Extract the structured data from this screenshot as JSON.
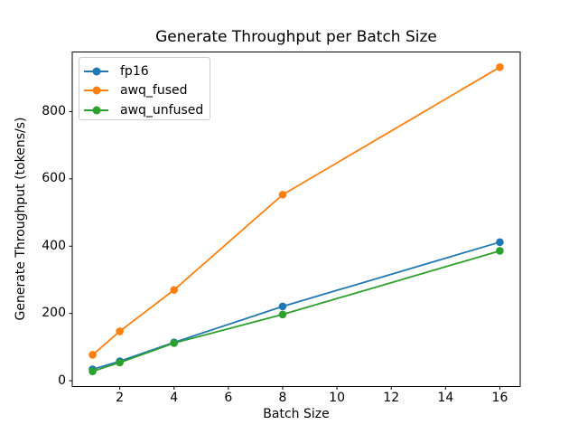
{
  "chart_data": {
    "type": "line",
    "title": "Generate Throughput per Batch Size",
    "xlabel": "Batch Size",
    "ylabel": "Generate Throughput (tokens/s)",
    "x": [
      1,
      2,
      4,
      8,
      16
    ],
    "series": [
      {
        "name": "fp16",
        "color": "#1f77b4",
        "values": [
          34,
          58,
          114,
          221,
          412
        ]
      },
      {
        "name": "awq_fused",
        "color": "#ff7f0e",
        "values": [
          77,
          147,
          270,
          553,
          932
        ]
      },
      {
        "name": "awq_unfused",
        "color": "#2ca02c",
        "values": [
          28,
          54,
          112,
          197,
          386
        ]
      }
    ],
    "xticks": [
      2,
      4,
      6,
      8,
      10,
      12,
      14,
      16
    ],
    "yticks": [
      0,
      200,
      400,
      600,
      800
    ],
    "xlim": [
      0.25,
      16.75
    ],
    "ylim": [
      -17.2,
      977.2
    ],
    "grid": false,
    "legend_position": "upper left",
    "marker": "circle",
    "axis_color": "#000000",
    "legend_border_color": "#cccccc"
  }
}
